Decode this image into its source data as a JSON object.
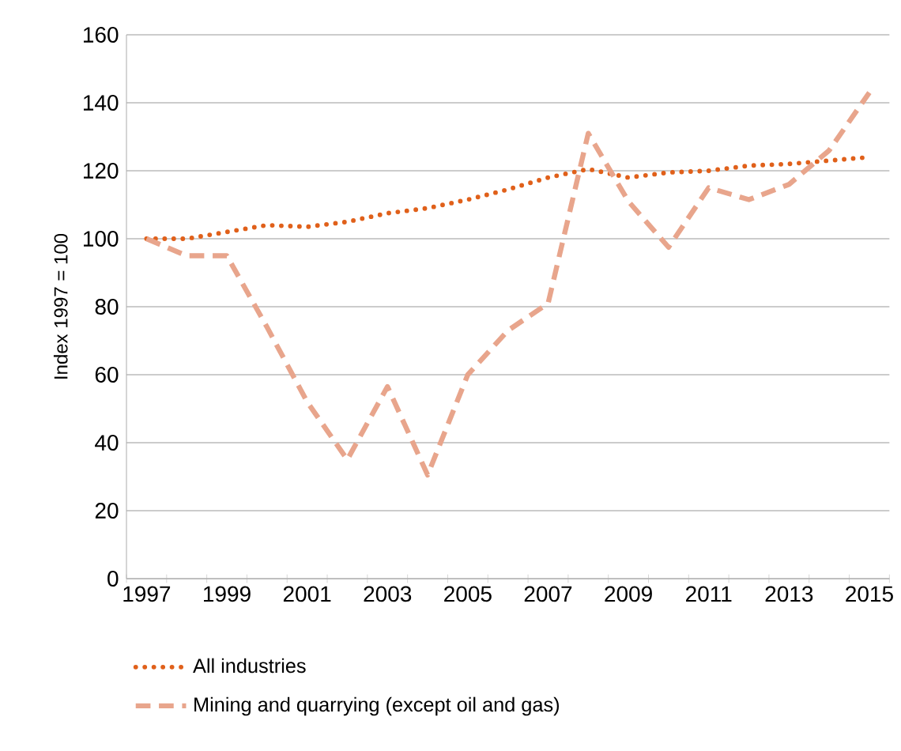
{
  "chart_data": {
    "type": "line",
    "ylabel": "Index 1997 = 100",
    "categories": [
      "1997",
      null,
      "1999",
      null,
      "2001",
      null,
      "2003",
      null,
      "2005",
      null,
      "2007",
      null,
      "2009",
      null,
      "2011",
      null,
      "2013",
      null,
      "2015"
    ],
    "series": [
      {
        "name": "All industries",
        "color": "#e0601a",
        "line_style": "dotted",
        "values": [
          100,
          100,
          102,
          104,
          103.5,
          105,
          107.5,
          109,
          111.5,
          114.5,
          118,
          120.5,
          118,
          119.5,
          120,
          121.5,
          122,
          123,
          124
        ]
      },
      {
        "name": "Mining and quarrying (except oil and gas)",
        "color": "#e8a58c",
        "line_style": "dashed",
        "values": [
          100,
          95,
          95,
          74,
          52,
          35,
          56.5,
          30.5,
          60,
          73,
          81,
          131,
          111,
          97.5,
          115,
          111.5,
          116,
          126,
          143
        ]
      }
    ],
    "ylim": [
      0,
      160
    ],
    "yticks": [
      0,
      20,
      40,
      60,
      80,
      100,
      120,
      140,
      160
    ],
    "grid": "y",
    "legend": "bottom"
  }
}
